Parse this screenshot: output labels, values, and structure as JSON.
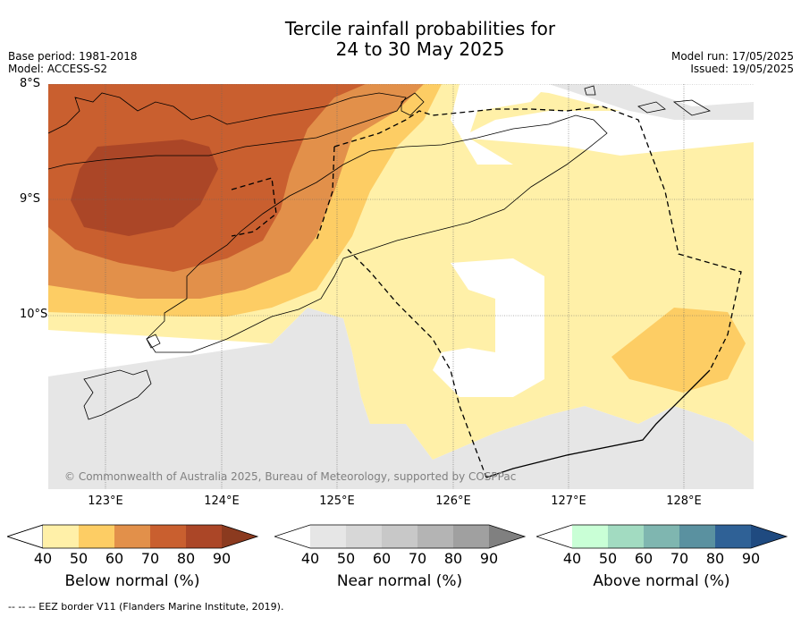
{
  "title": {
    "line1": "Tercile rainfall probabilities for",
    "line2": "24 to 30 May 2025"
  },
  "meta": {
    "base_period": "Base period: 1981-2018",
    "model": "Model: ACCESS-S2",
    "model_run": "Model run: 17/05/2025",
    "issued": "Issued: 19/05/2025"
  },
  "axes": {
    "lat_ticks": [
      "8°S",
      "9°S",
      "10°S"
    ],
    "lon_ticks": [
      "123°E",
      "124°E",
      "125°E",
      "126°E",
      "127°E",
      "128°E"
    ]
  },
  "credit": "© Commonwealth of Australia 2025, Bureau of Meteorology, supported by COSPPac",
  "colorbars": [
    {
      "label": "Below normal (%)",
      "ticks": [
        "40",
        "50",
        "60",
        "70",
        "80",
        "90"
      ],
      "colors": [
        "#fff0a8",
        "#fdcd64",
        "#e2904a",
        "#c95f2f",
        "#ab4627",
        "#8b3a1f"
      ]
    },
    {
      "label": "Near normal (%)",
      "ticks": [
        "40",
        "50",
        "60",
        "70",
        "80",
        "90"
      ],
      "colors": [
        "#e6e6e6",
        "#d7d7d7",
        "#c8c8c8",
        "#b4b4b4",
        "#a0a0a0",
        "#808080"
      ]
    },
    {
      "label": "Above normal (%)",
      "ticks": [
        "40",
        "50",
        "60",
        "70",
        "80",
        "90"
      ],
      "colors": [
        "#c9ffd6",
        "#a2dbc1",
        "#7fb6b0",
        "#5a91a0",
        "#2f6196",
        "#1f4a80"
      ]
    }
  ],
  "footer": "-- -- -- EEZ border V11 (Flanders Marine Institute, 2019).",
  "map_colors": {
    "below_40": "#fff0a8",
    "below_50": "#fdcd64",
    "below_60": "#e2904a",
    "below_70": "#c95f2f",
    "below_80": "#ab4627",
    "near_40": "#e6e6e6"
  }
}
